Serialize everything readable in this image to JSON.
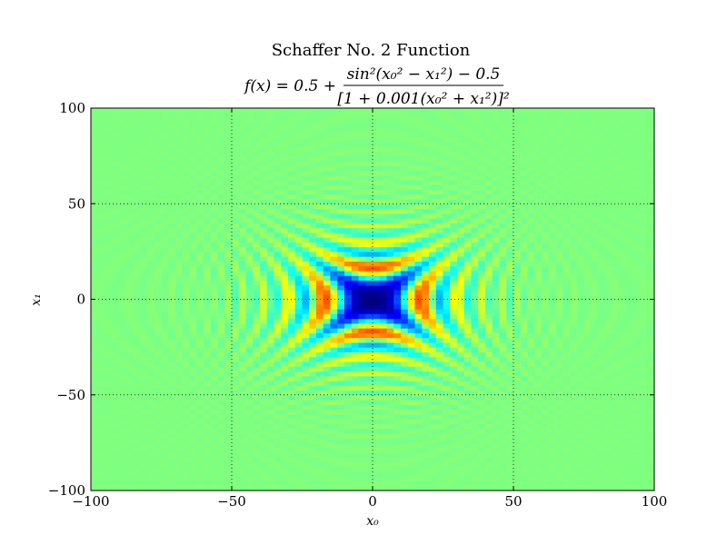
{
  "chart_data": {
    "type": "heatmap",
    "title": "Schaffer No. 2 Function",
    "formula": {
      "lhs": "f(x) = 0.5 +",
      "numerator": "sin²(x₀² − x₁²) − 0.5",
      "denominator": "[1 + 0.001(x₀² + x₁²)]²"
    },
    "xlabel": "x₀",
    "ylabel": "x₁",
    "xlim": [
      -100,
      100
    ],
    "ylim": [
      -100,
      100
    ],
    "xticks": [
      -100,
      -50,
      0,
      50,
      100
    ],
    "yticks": [
      -100,
      -50,
      0,
      50,
      100
    ],
    "xtick_labels": [
      "−100",
      "−50",
      "0",
      "50",
      "100"
    ],
    "ytick_labels": [
      "−100",
      "−50",
      "0",
      "50",
      "100"
    ],
    "grid": true,
    "grid_style": "dotted",
    "colormap": "jet",
    "function": "0.5 + (sin^2(x0^2 - x1^2) - 0.5) / (1 + 0.001*(x0^2 + x1^2))^2",
    "sample_grid_step": 2.5,
    "colors": {
      "background_level": "#ccff33",
      "high": "#cc0000",
      "low": "#33ffcc"
    }
  }
}
